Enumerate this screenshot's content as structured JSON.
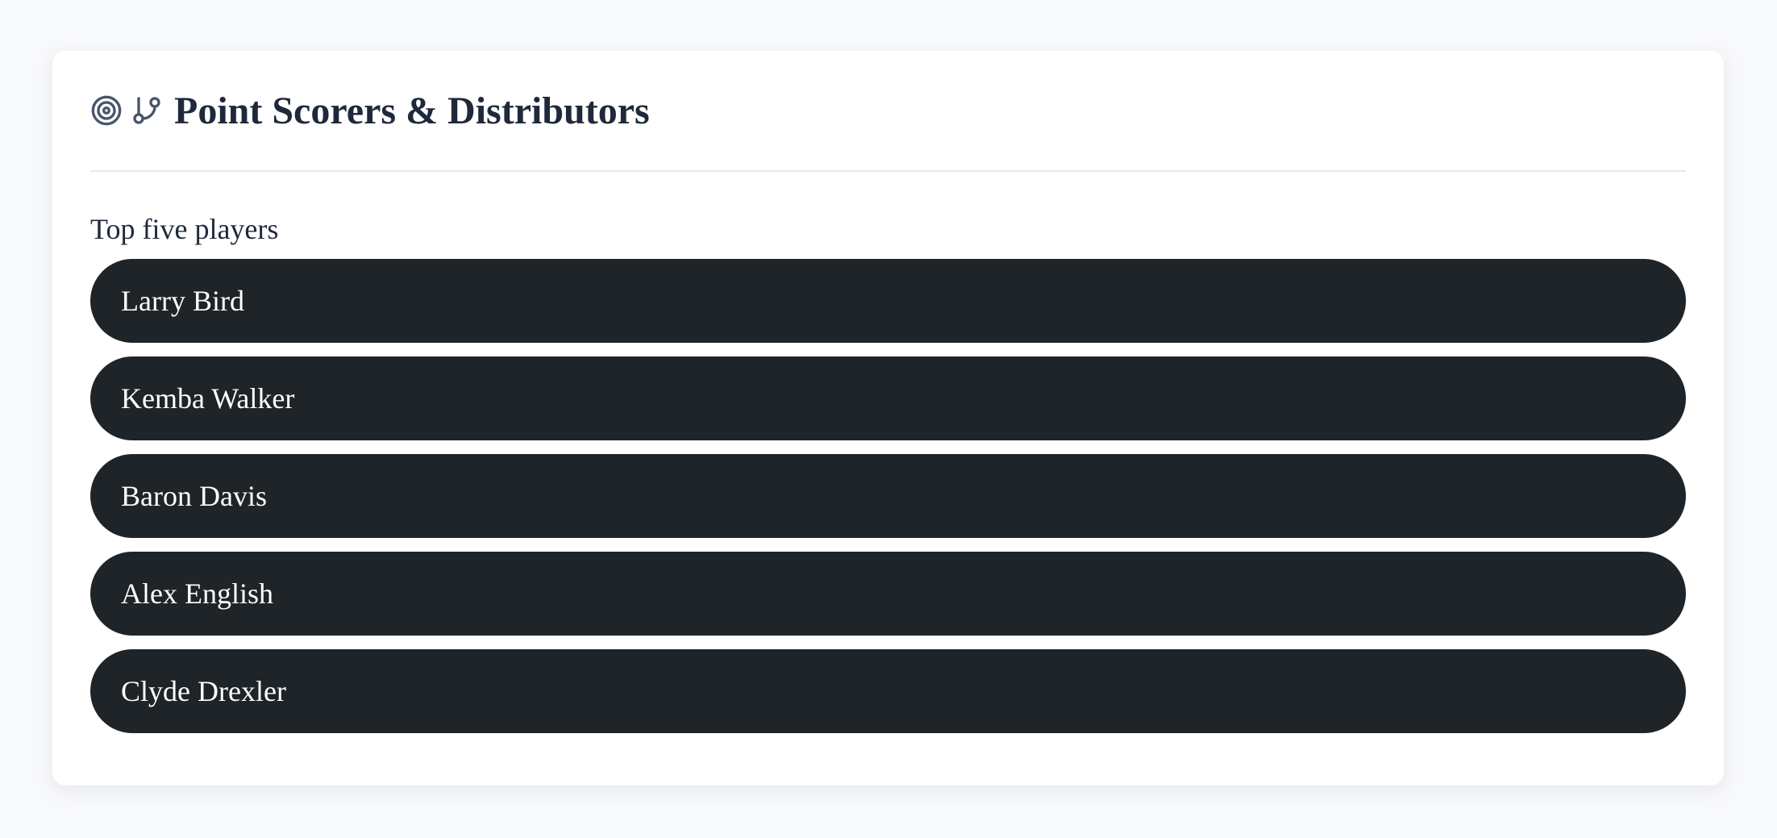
{
  "header": {
    "title": "Point Scorers & Distributors",
    "icons": [
      "target-icon",
      "git-branch-icon"
    ]
  },
  "section": {
    "subtitle": "Top five players"
  },
  "players": [
    "Larry Bird",
    "Kemba Walker",
    "Baron Davis",
    "Alex English",
    "Clyde Drexler"
  ],
  "colors": {
    "row_bg": "#1e2428",
    "text": "#1e293b",
    "icon": "#475569"
  }
}
